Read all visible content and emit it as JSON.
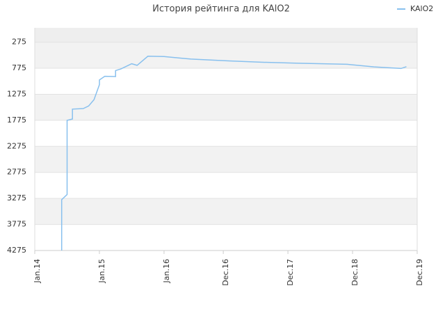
{
  "chart_data": {
    "type": "line",
    "title": "История рейтинга для KAlO2",
    "x": [
      "2014-06",
      "2014-06",
      "2014-06",
      "2014-07",
      "2014-07",
      "2014-07",
      "2014-07",
      "2014-08",
      "2014-08",
      "2014-10",
      "2014-11",
      "2014-12",
      "2015-01",
      "2015-01",
      "2015-02",
      "2015-04",
      "2015-04",
      "2015-05",
      "2015-07",
      "2015-08",
      "2015-10",
      "2016-01",
      "2016-03",
      "2016-06",
      "2017-01",
      "2017-07",
      "2018-02",
      "2018-11",
      "2019-04",
      "2019-09",
      "2019-10"
    ],
    "series": [
      {
        "name": "KAlO2",
        "color": "#88c0ee",
        "values": [
          4275,
          3900,
          3300,
          3200,
          2800,
          2200,
          1775,
          1750,
          1560,
          1550,
          1500,
          1380,
          1090,
          1000,
          930,
          935,
          820,
          790,
          690,
          720,
          545,
          550,
          570,
          600,
          635,
          660,
          680,
          700,
          750,
          780,
          745
        ]
      }
    ],
    "xlim": [
      "2014-01",
      "2019-12"
    ],
    "xticks": [
      {
        "value": "2014-01",
        "label": "Jan.14"
      },
      {
        "value": "2015-01",
        "label": "Jan.15"
      },
      {
        "value": "2016-01",
        "label": "Jan.16"
      },
      {
        "value": "2016-12",
        "label": "Dec.16"
      },
      {
        "value": "2017-12",
        "label": "Dec.17"
      },
      {
        "value": "2018-12",
        "label": "Dec.18"
      },
      {
        "value": "2019-12",
        "label": "Dec.19"
      }
    ],
    "ylim": [
      4275,
      0
    ],
    "yticks": [
      275,
      775,
      1275,
      1775,
      2275,
      2775,
      3275,
      3775,
      4275
    ],
    "legend": "top-right"
  }
}
